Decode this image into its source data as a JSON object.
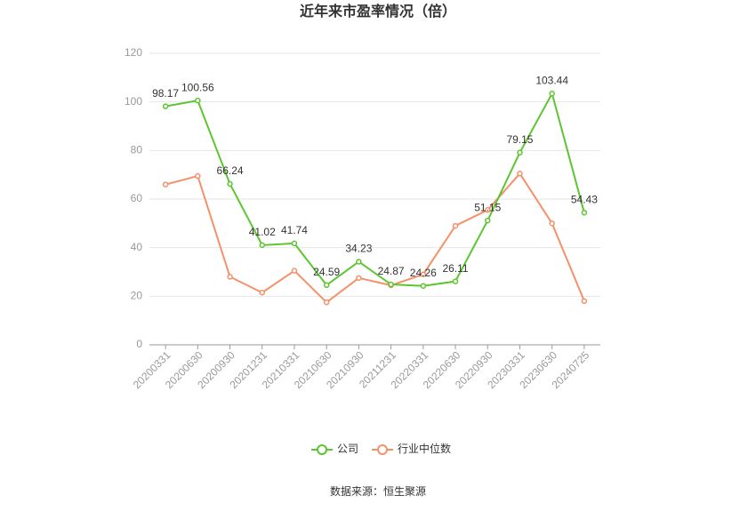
{
  "chart_data": {
    "type": "line",
    "title": "近年来市盈率情况（倍）",
    "categories": [
      "20200331",
      "20200630",
      "20200930",
      "20201231",
      "20210331",
      "20210630",
      "20210930",
      "20211231",
      "20220331",
      "20220630",
      "20220930",
      "20230331",
      "20230630",
      "20240725"
    ],
    "series": [
      {
        "name": "公司",
        "color": "#5cc630",
        "values": [
          98.17,
          100.56,
          66.24,
          41.02,
          41.74,
          24.59,
          34.23,
          24.87,
          24.26,
          26.11,
          51.15,
          79.15,
          103.44,
          54.43
        ],
        "data_labels": true
      },
      {
        "name": "行业中位数",
        "color": "#f4916a",
        "values": [
          66,
          69.5,
          28,
          21.5,
          30.5,
          17.5,
          27.5,
          24.5,
          29,
          49,
          55.5,
          70.5,
          50,
          18
        ],
        "data_labels": false
      }
    ],
    "ylim": [
      0,
      120
    ],
    "yticks": [
      0,
      20,
      40,
      60,
      80,
      100,
      120
    ],
    "grid": true,
    "legend": "bottom",
    "source": "数据来源：恒生聚源"
  }
}
